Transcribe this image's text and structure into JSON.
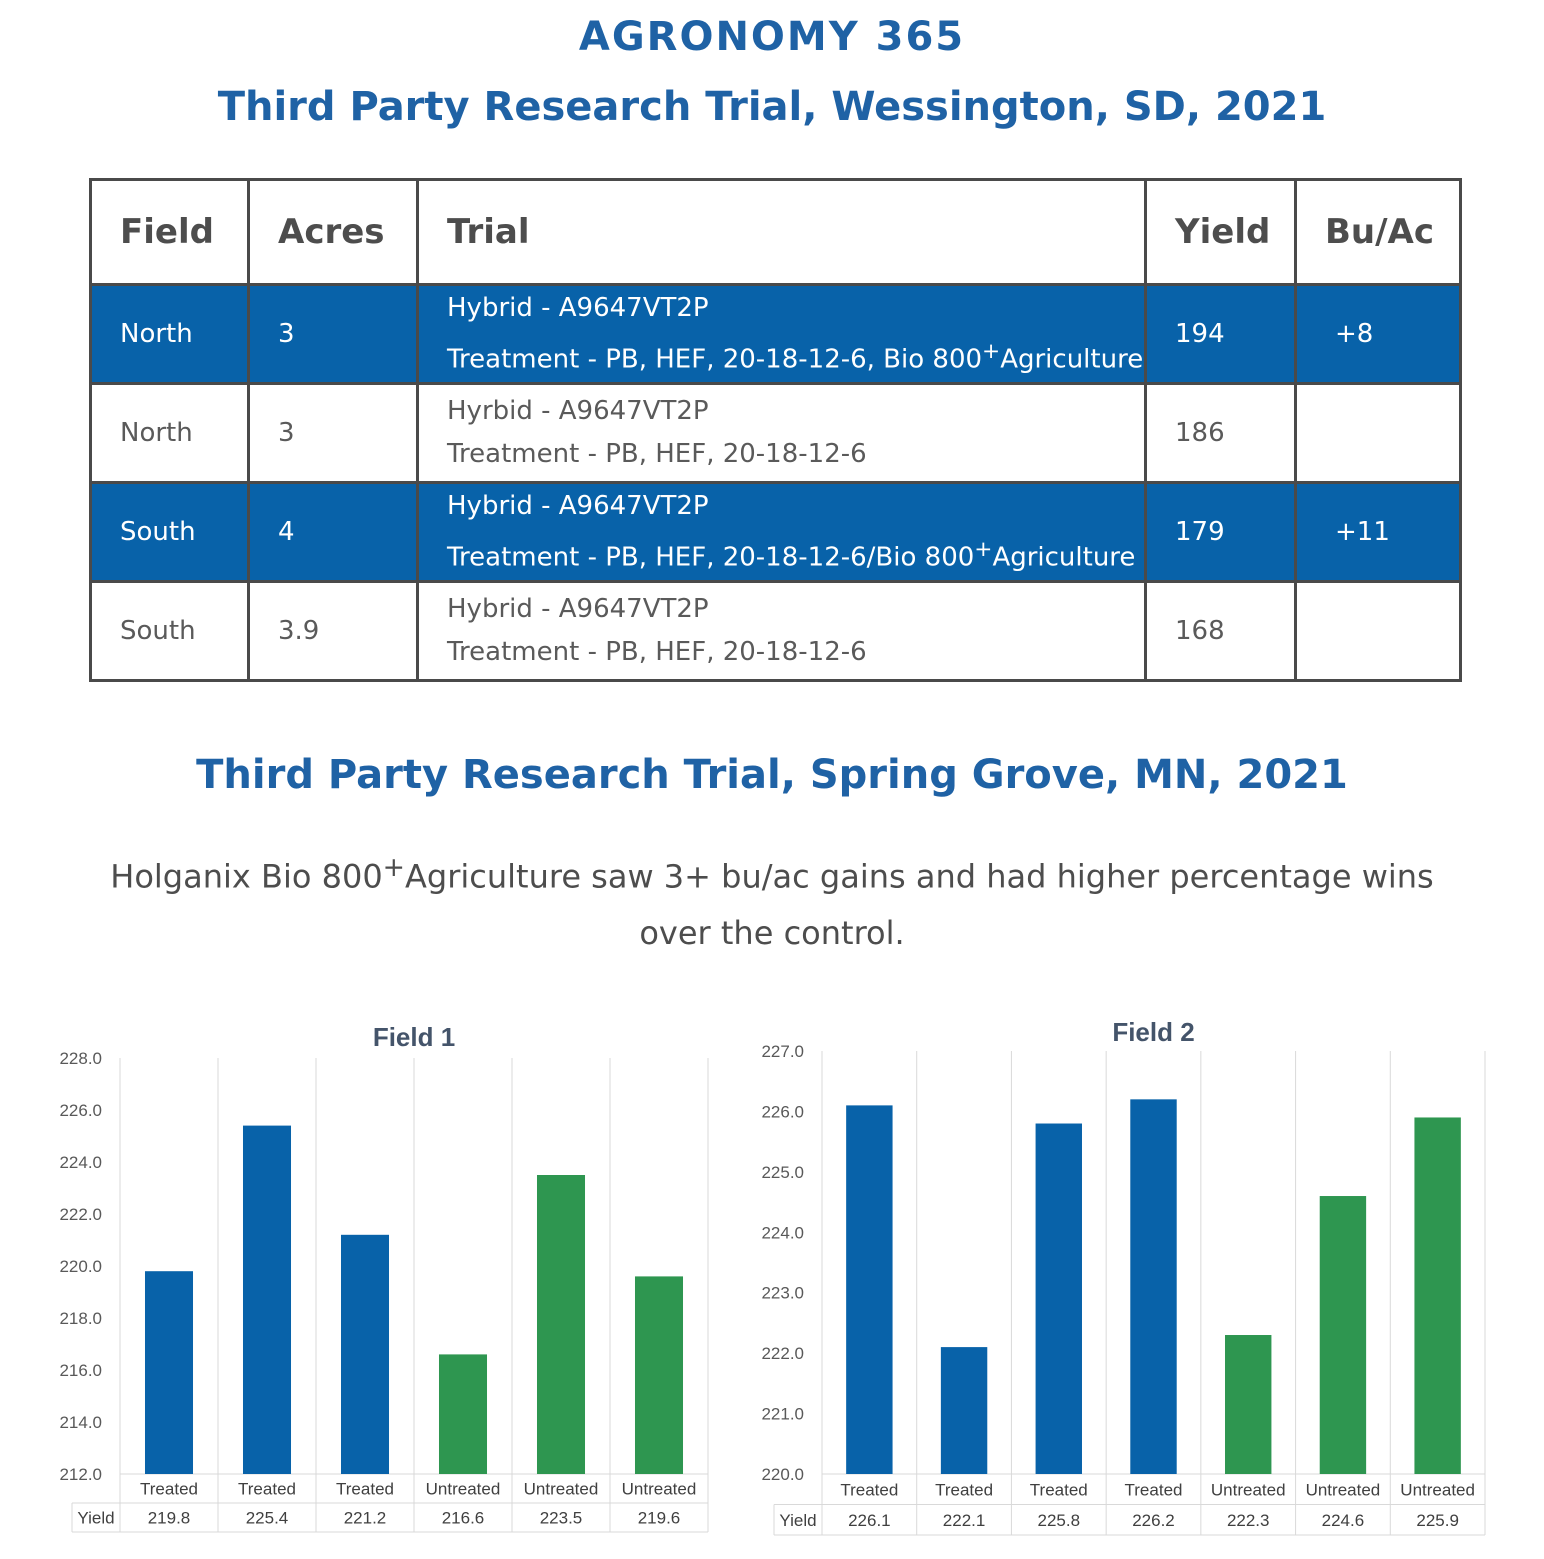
{
  "header": {
    "title": "AGRONOMY 365",
    "subtitle": "Third Party Research Trial, Wessington, SD, 2021"
  },
  "table": {
    "headers": [
      "Field",
      "Acres",
      "Trial",
      "Yield",
      "Bu/Ac"
    ],
    "rows": [
      {
        "field": "North",
        "acres": "3",
        "hybrid": "Hybrid - A9647VT2P",
        "treatment_prefix": "Treatment - PB, HEF, 20-18-12-6, Bio 800",
        "treatment_sup": "+",
        "treatment_suffix": "Agriculture",
        "yield": "194",
        "buac": "+8",
        "highlight": true
      },
      {
        "field": "North",
        "acres": "3",
        "hybrid": "Hyrbid - A9647VT2P",
        "treatment_prefix": "Treatment - PB, HEF, 20-18-12-6",
        "treatment_sup": "",
        "treatment_suffix": "",
        "yield": "186",
        "buac": "",
        "highlight": false
      },
      {
        "field": "South",
        "acres": "4",
        "hybrid": "Hybrid - A9647VT2P",
        "treatment_prefix": "Treatment - PB, HEF, 20-18-12-6/Bio 800",
        "treatment_sup": "+",
        "treatment_suffix": "Agriculture",
        "yield": "179",
        "buac": "+11",
        "highlight": true
      },
      {
        "field": "South",
        "acres": "3.9",
        "hybrid": "Hybrid - A9647VT2P",
        "treatment_prefix": "Treatment - PB, HEF, 20-18-12-6",
        "treatment_sup": "",
        "treatment_suffix": "",
        "yield": "168",
        "buac": "",
        "highlight": false
      }
    ]
  },
  "section2": {
    "title": "Third Party Research Trial, Spring Grove, MN, 2021",
    "summary_prefix": "Holganix Bio 800",
    "summary_sup": "+",
    "summary_suffix": "Agriculture saw 3+ bu/ac gains and had higher percentage wins over the control."
  },
  "colors": {
    "treated": "#0862a9",
    "untreated": "#2e9650",
    "title_blue": "#1f62a5"
  },
  "chart_data": [
    {
      "type": "bar",
      "title": "Field 1",
      "categories": [
        "Treated",
        "Treated",
        "Treated",
        "Untreated",
        "Untreated",
        "Untreated"
      ],
      "values": [
        219.8,
        225.4,
        221.2,
        216.6,
        223.5,
        219.6
      ],
      "value_labels": [
        "219.8",
        "225.4",
        "221.2",
        "216.6",
        "223.5",
        "219.6"
      ],
      "row_label": "Yield",
      "ylim": [
        212.0,
        228.0
      ],
      "yticks": [
        212.0,
        214.0,
        216.0,
        218.0,
        220.0,
        222.0,
        224.0,
        226.0,
        228.0
      ]
    },
    {
      "type": "bar",
      "title": "Field 2",
      "categories": [
        "Treated",
        "Treated",
        "Treated",
        "Treated",
        "Untreated",
        "Untreated",
        "Untreated"
      ],
      "values": [
        226.1,
        222.1,
        225.8,
        226.2,
        222.3,
        224.6,
        225.9
      ],
      "value_labels": [
        "226.1",
        "222.1",
        "225.8",
        "226.2",
        "222.3",
        "224.6",
        "225.9"
      ],
      "row_label": "Yield",
      "ylim": [
        220.0,
        227.0
      ],
      "yticks": [
        220.0,
        221.0,
        222.0,
        223.0,
        224.0,
        225.0,
        226.0,
        227.0
      ]
    }
  ]
}
